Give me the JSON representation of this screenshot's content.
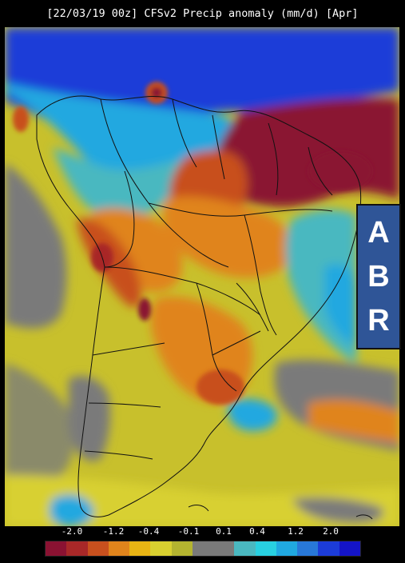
{
  "title": "[22/03/19 00z] CFSv2 Precip anomaly (mm/d) [Apr]",
  "overlay_letters": [
    "A",
    "B",
    "R"
  ],
  "colorbar": {
    "tick_labels": [
      "-2.0",
      "-1.2",
      "-0.4",
      "-0.1",
      "0.1",
      "0.4",
      "1.2",
      "2.0"
    ],
    "colors": [
      "#8a1232",
      "#a82828",
      "#c8501e",
      "#e0841c",
      "#e8b414",
      "#d8d030",
      "#b4b430",
      "#7a7a7a",
      "#7a7a7a",
      "#4ab8c0",
      "#28d0e0",
      "#20a8e0",
      "#2878d8",
      "#1c3cd8",
      "#1414c8"
    ]
  },
  "colors": {
    "strong_dry": "#8a1232",
    "dry": "#c8501e",
    "slightly_dry": "#e0a01c",
    "near_normal_yellow": "#d8cc30",
    "neutral_grey": "#7a7a7a",
    "slightly_wet": "#4ab8c0",
    "wet": "#20a8e0",
    "strong_wet": "#1c3cd8"
  }
}
